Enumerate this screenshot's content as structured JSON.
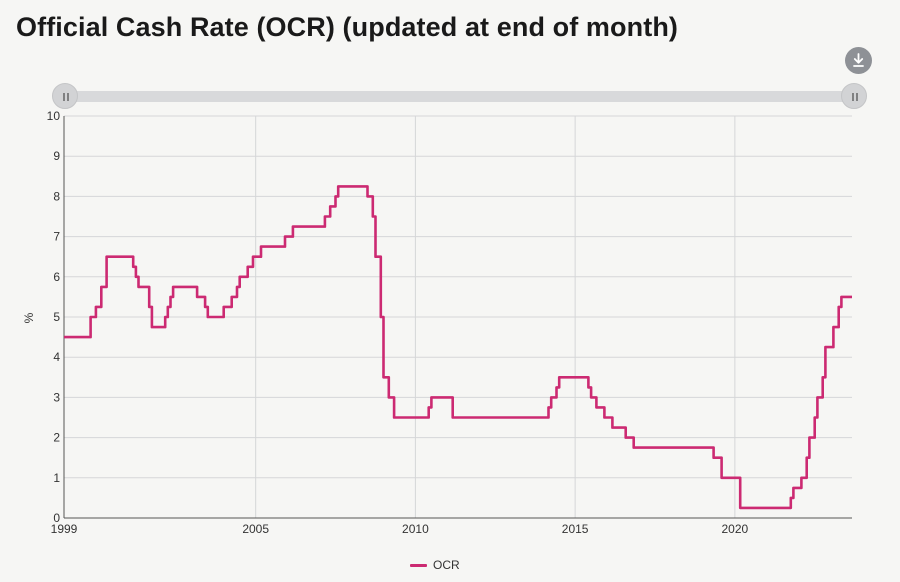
{
  "title": "Official Cash Rate (OCR) (updated at end of month)",
  "icons": {
    "download": "download-icon",
    "slider_handle": "grip-lines-icon"
  },
  "colors": {
    "series": "#cc2a72",
    "grid": "#d5d6d8",
    "axis": "#333333"
  },
  "legend": {
    "label": "OCR"
  },
  "chart_data": {
    "type": "line",
    "title": "Official Cash Rate (OCR) (updated at end of month)",
    "xlabel": "",
    "ylabel": "%",
    "x_ticks": [
      "1999",
      "2005",
      "2010",
      "2015",
      "2020"
    ],
    "y_ticks": [
      "0",
      "1",
      "2",
      "3",
      "4",
      "5",
      "6",
      "7",
      "8",
      "9",
      "10"
    ],
    "xlim": [
      "1999-01",
      "2023-09"
    ],
    "ylim": [
      0,
      10
    ],
    "grid": true,
    "legend_position": "bottom",
    "series": [
      {
        "name": "OCR",
        "points": [
          [
            "1999-01",
            4.5
          ],
          [
            "1999-07",
            4.5
          ],
          [
            "1999-11",
            5.0
          ],
          [
            "2000-01",
            5.25
          ],
          [
            "2000-03",
            5.75
          ],
          [
            "2000-05",
            6.5
          ],
          [
            "2001-02",
            6.5
          ],
          [
            "2001-03",
            6.25
          ],
          [
            "2001-04",
            6.0
          ],
          [
            "2001-05",
            5.75
          ],
          [
            "2001-09",
            5.25
          ],
          [
            "2001-10",
            4.75
          ],
          [
            "2002-03",
            5.0
          ],
          [
            "2002-04",
            5.25
          ],
          [
            "2002-05",
            5.5
          ],
          [
            "2002-06",
            5.75
          ],
          [
            "2003-03",
            5.5
          ],
          [
            "2003-06",
            5.25
          ],
          [
            "2003-07",
            5.0
          ],
          [
            "2004-01",
            5.25
          ],
          [
            "2004-04",
            5.5
          ],
          [
            "2004-06",
            5.75
          ],
          [
            "2004-07",
            6.0
          ],
          [
            "2004-10",
            6.25
          ],
          [
            "2004-12",
            6.5
          ],
          [
            "2005-03",
            6.75
          ],
          [
            "2005-12",
            7.0
          ],
          [
            "2006-03",
            7.25
          ],
          [
            "2007-03",
            7.5
          ],
          [
            "2007-05",
            7.75
          ],
          [
            "2007-07",
            8.0
          ],
          [
            "2007-08",
            8.25
          ],
          [
            "2008-07",
            8.0
          ],
          [
            "2008-09",
            7.5
          ],
          [
            "2008-10",
            6.5
          ],
          [
            "2008-12",
            5.0
          ],
          [
            "2009-01",
            3.5
          ],
          [
            "2009-03",
            3.0
          ],
          [
            "2009-05",
            2.5
          ],
          [
            "2010-06",
            2.75
          ],
          [
            "2010-07",
            3.0
          ],
          [
            "2011-03",
            2.5
          ],
          [
            "2014-03",
            2.75
          ],
          [
            "2014-04",
            3.0
          ],
          [
            "2014-06",
            3.25
          ],
          [
            "2014-07",
            3.5
          ],
          [
            "2015-06",
            3.25
          ],
          [
            "2015-07",
            3.0
          ],
          [
            "2015-09",
            2.75
          ],
          [
            "2015-12",
            2.5
          ],
          [
            "2016-03",
            2.25
          ],
          [
            "2016-08",
            2.0
          ],
          [
            "2016-11",
            1.75
          ],
          [
            "2019-05",
            1.5
          ],
          [
            "2019-08",
            1.0
          ],
          [
            "2020-03",
            0.25
          ],
          [
            "2021-10",
            0.5
          ],
          [
            "2021-11",
            0.75
          ],
          [
            "2022-02",
            1.0
          ],
          [
            "2022-04",
            1.5
          ],
          [
            "2022-05",
            2.0
          ],
          [
            "2022-07",
            2.5
          ],
          [
            "2022-08",
            3.0
          ],
          [
            "2022-10",
            3.5
          ],
          [
            "2022-11",
            4.25
          ],
          [
            "2023-02",
            4.75
          ],
          [
            "2023-04",
            5.25
          ],
          [
            "2023-05",
            5.5
          ],
          [
            "2023-09",
            5.5
          ]
        ]
      }
    ]
  }
}
